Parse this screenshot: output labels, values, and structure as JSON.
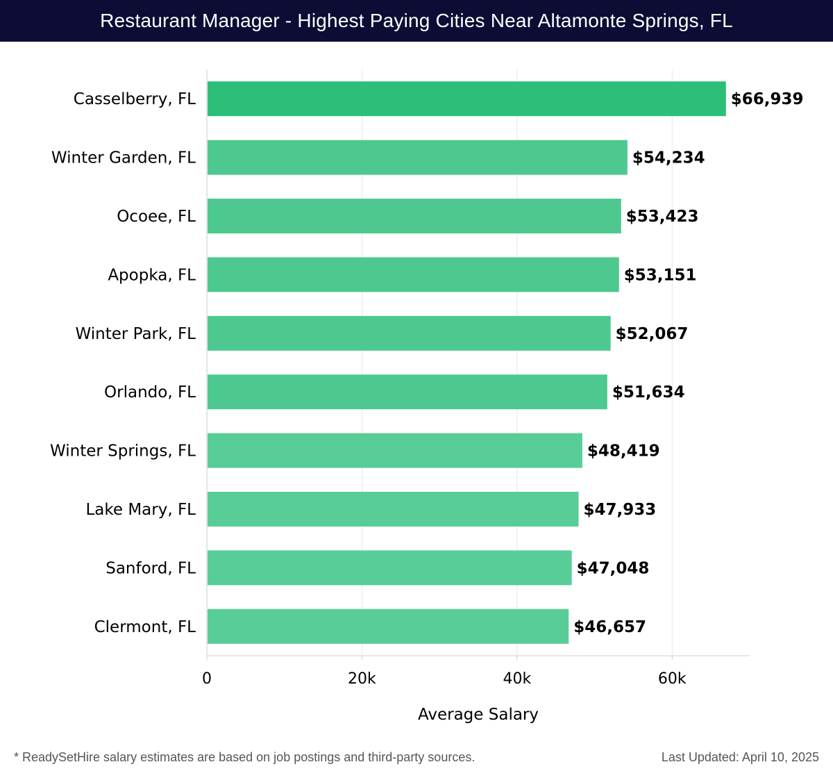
{
  "header": {
    "title": "Restaurant Manager - Highest Paying Cities Near Altamonte Springs, FL"
  },
  "chart_data": {
    "type": "bar",
    "orientation": "horizontal",
    "title": "Restaurant Manager - Highest Paying Cities Near Altamonte Springs, FL",
    "xlabel": "Average Salary",
    "ylabel": "",
    "xlim": [
      0,
      70000
    ],
    "x_ticks": [
      0,
      20000,
      40000,
      60000
    ],
    "x_tick_labels": [
      "0",
      "20k",
      "40k",
      "60k"
    ],
    "grid": true,
    "categories": [
      "Casselberry, FL",
      "Winter Garden, FL",
      "Ocoee, FL",
      "Apopka, FL",
      "Winter Park, FL",
      "Orlando, FL",
      "Winter Springs, FL",
      "Lake Mary, FL",
      "Sanford, FL",
      "Clermont, FL"
    ],
    "values": [
      66939,
      54234,
      53423,
      53151,
      52067,
      51634,
      48419,
      47933,
      47048,
      46657
    ],
    "value_labels": [
      "$66,939",
      "$54,234",
      "$53,423",
      "$53,151",
      "$52,067",
      "$51,634",
      "$48,419",
      "$47,933",
      "$47,048",
      "$46,657"
    ],
    "colors": {
      "top_bar": "#2dbf77",
      "bar": "#4dc98f",
      "bar_light": "#58cd97",
      "grid": "#e6e6e6",
      "axis": "#cccccc",
      "label": "#000000"
    }
  },
  "footer": {
    "note": "* ReadySetHire salary estimates are based on job postings and third-party sources.",
    "updated": "Last Updated: April 10, 2025"
  }
}
